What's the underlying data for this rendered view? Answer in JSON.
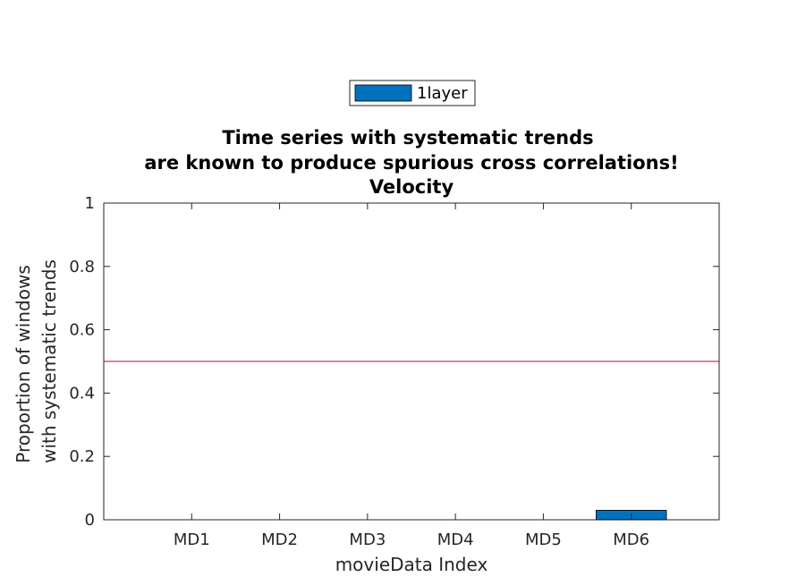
{
  "chart_data": {
    "type": "bar",
    "title": [
      "Time series with systematic trends",
      "are known to produce spurious cross correlations!",
      "Velocity"
    ],
    "xlabel": "movieData Index",
    "ylabel": [
      "Proportion of windows",
      "with systematic trends"
    ],
    "categories": [
      "MD1",
      "MD2",
      "MD3",
      "MD4",
      "MD5",
      "MD6"
    ],
    "series": [
      {
        "name": "1layer",
        "values": [
          0,
          0,
          0,
          0,
          0,
          0.03
        ],
        "color": "#0072BD"
      }
    ],
    "ylim": [
      0,
      1
    ],
    "yticks": [
      0,
      0.2,
      0.4,
      0.6,
      0.8,
      1
    ],
    "ytick_labels": [
      "0",
      "0.2",
      "0.4",
      "0.6",
      "0.8",
      "1"
    ],
    "reference_line": {
      "y": 0.5,
      "color": "#A2142F"
    },
    "grid": false,
    "legend_position": "top-center"
  }
}
